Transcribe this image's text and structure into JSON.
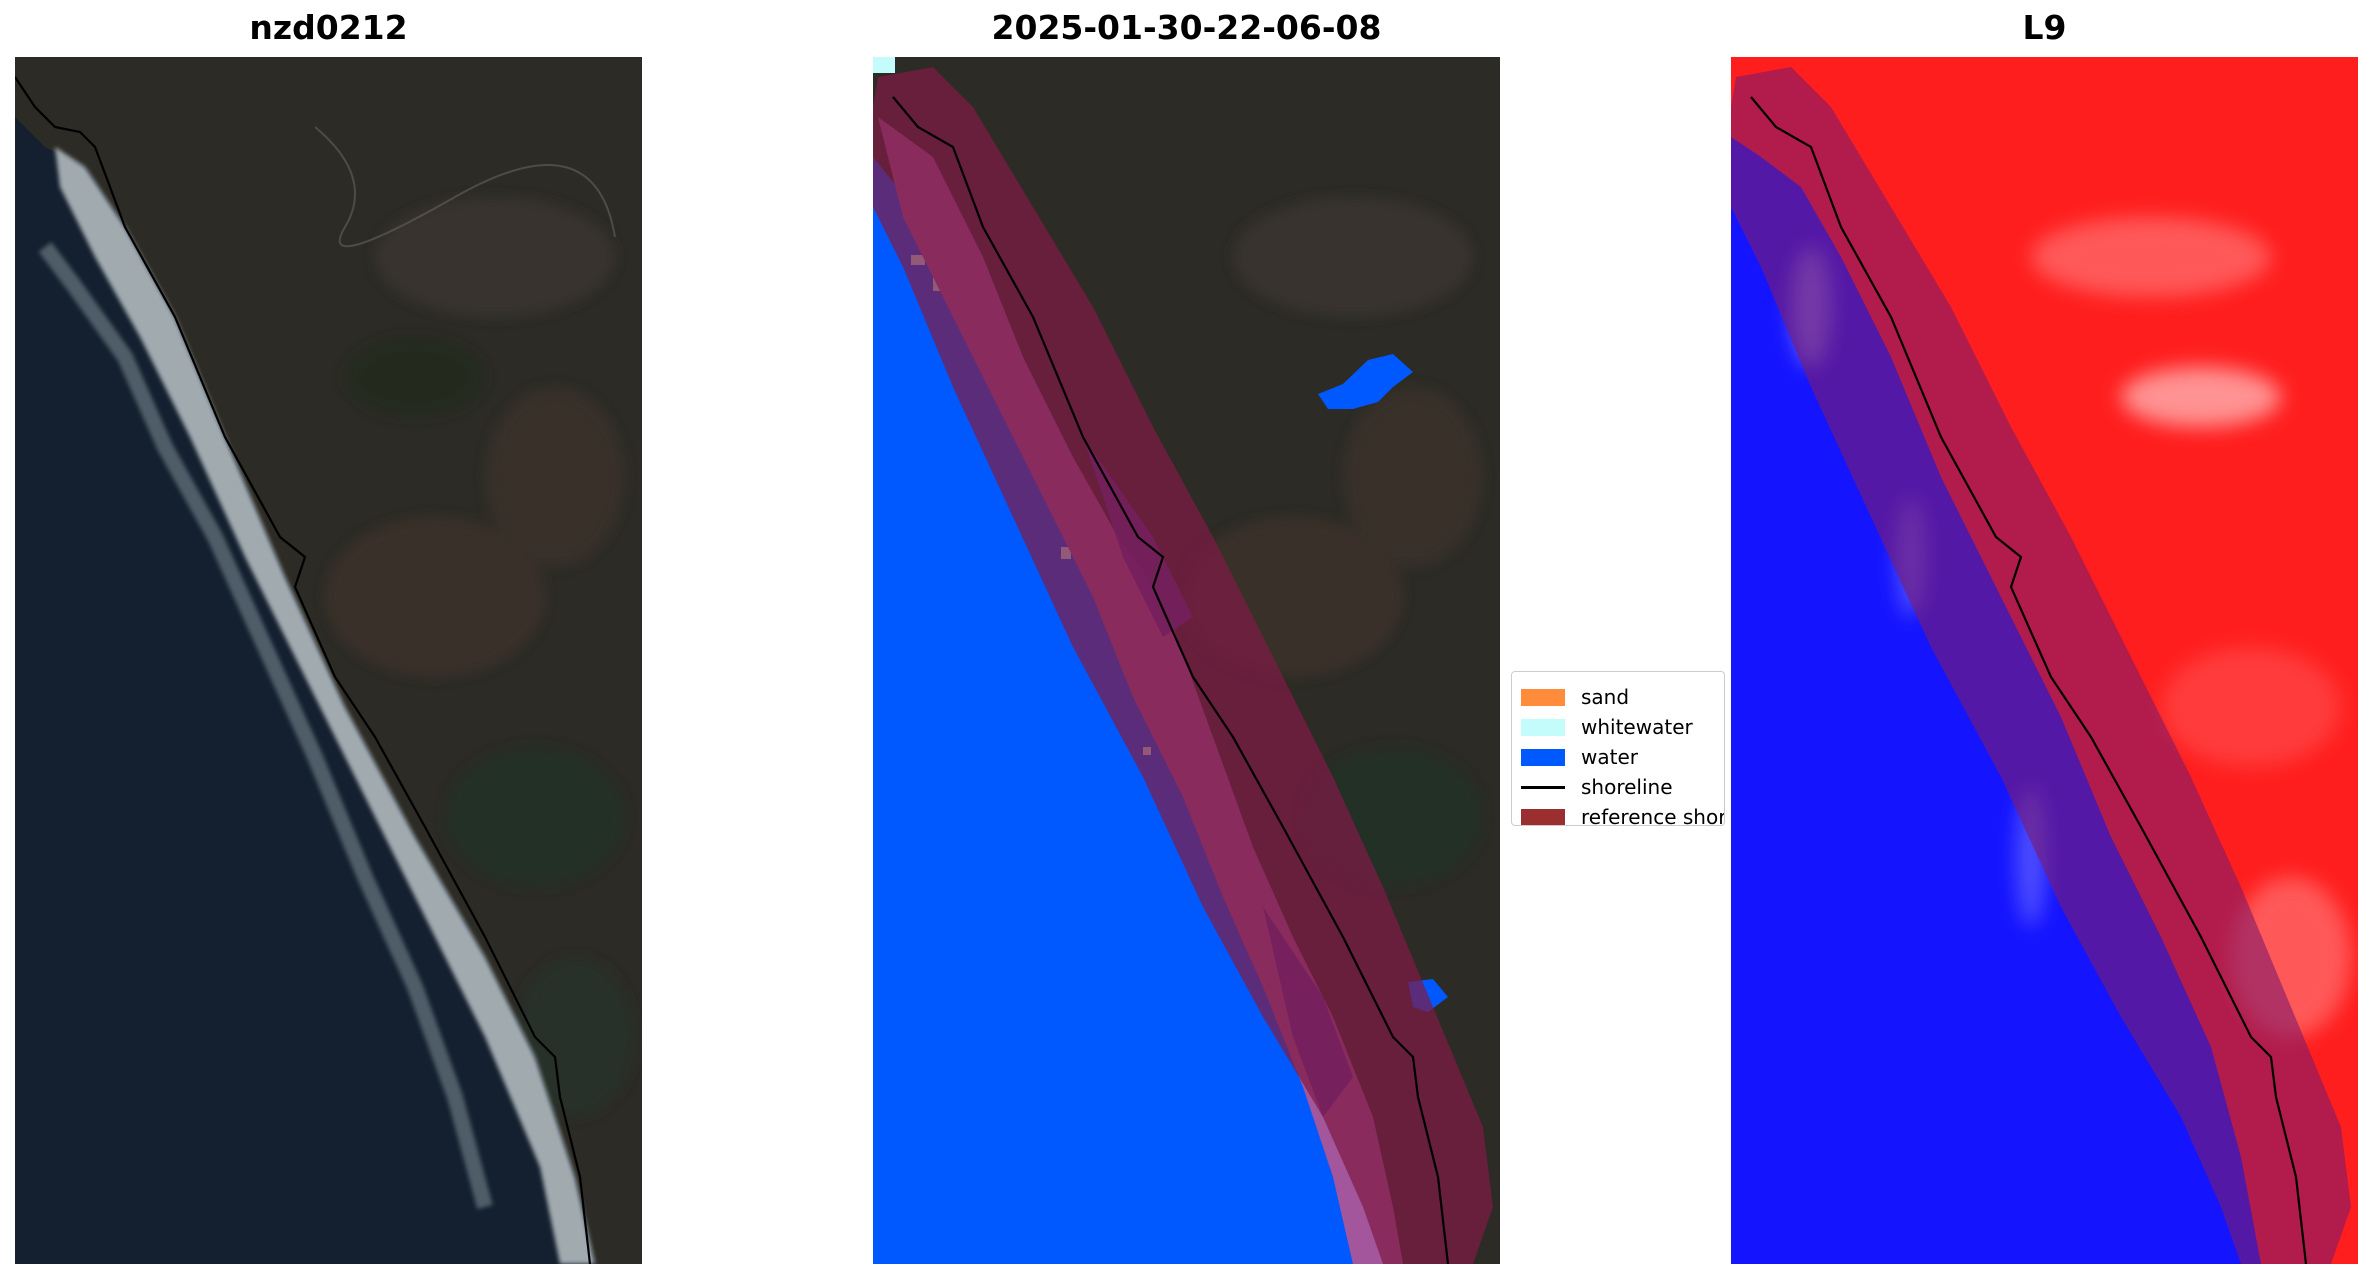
{
  "panels": {
    "left": {
      "title": "nzd0212"
    },
    "middle": {
      "title": "2025-01-30-22-06-08"
    },
    "right": {
      "title": "L9"
    }
  },
  "legend": {
    "items": [
      {
        "label": "sand",
        "color": "#ff8c3a",
        "kind": "patch"
      },
      {
        "label": "whitewater",
        "color": "#c4fbfb",
        "kind": "patch"
      },
      {
        "label": "water",
        "color": "#0059ff",
        "kind": "patch"
      },
      {
        "label": "shoreline",
        "color": "#000000",
        "kind": "line"
      },
      {
        "label": "reference shoreline buffer",
        "color": "#9b2f2f",
        "kind": "patch"
      }
    ]
  },
  "colors": {
    "land": "#2b2a25",
    "ocean": "#14202f",
    "water_class": "#0059ff",
    "buffer": "#7e1a45",
    "index_positive": "#ff2020",
    "index_negative": "#1010ff"
  }
}
